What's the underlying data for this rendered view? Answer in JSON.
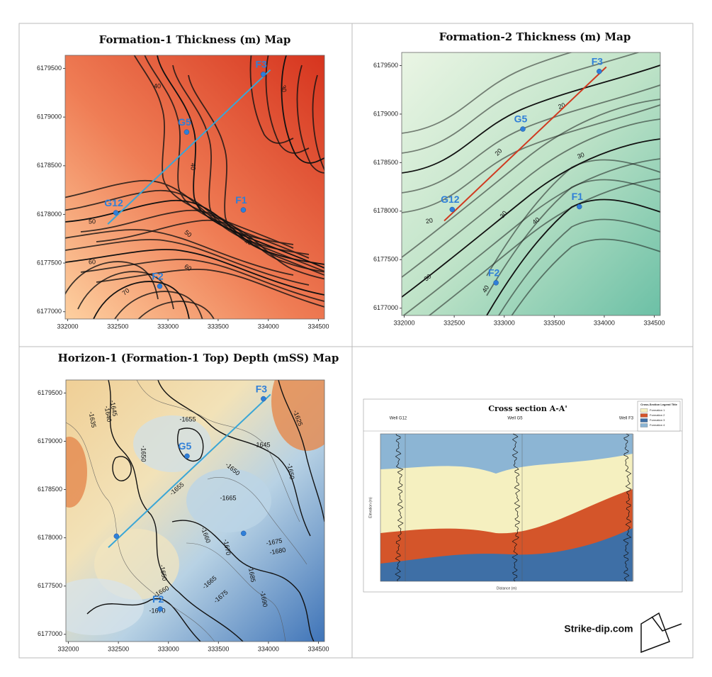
{
  "maps": [
    {
      "title": "Formation-1 Thickness (m) Map",
      "style": "f1",
      "xlim": [
        331975,
        334560
      ],
      "ylim": [
        6176925,
        6179635
      ],
      "xticks": [
        332000,
        332500,
        333000,
        333500,
        334000,
        334500
      ],
      "yticks": [
        6177000,
        6177500,
        6178000,
        6178500,
        6179000,
        6179500
      ],
      "section_color": "#3aa6d6",
      "wells": [
        {
          "name": "F3",
          "x": 333950,
          "y": 6179440
        },
        {
          "name": "G5",
          "x": 333186,
          "y": 6178846
        },
        {
          "name": "G12",
          "x": 332480,
          "y": 6178017
        },
        {
          "name": "F1",
          "x": 333751,
          "y": 6178046
        },
        {
          "name": "F2",
          "x": 332918,
          "y": 6177262
        }
      ],
      "contour_labels": [
        40,
        30,
        40,
        50,
        50,
        40,
        60,
        60,
        70
      ]
    },
    {
      "title": "Formation-2 Thickness (m) Map",
      "style": "f2",
      "xlim": [
        331975,
        334560
      ],
      "ylim": [
        6176925,
        6179635
      ],
      "xticks": [
        332000,
        332500,
        333000,
        333500,
        334000,
        334500
      ],
      "yticks": [
        6177000,
        6177500,
        6178000,
        6178500,
        6179000,
        6179500
      ],
      "section_color": "#d03a20",
      "wells": [
        {
          "name": "F3",
          "x": 333950,
          "y": 6179440
        },
        {
          "name": "G5",
          "x": 333186,
          "y": 6178846
        },
        {
          "name": "G12",
          "x": 332480,
          "y": 6178017
        },
        {
          "name": "F1",
          "x": 333751,
          "y": 6178046
        },
        {
          "name": "F2",
          "x": 332918,
          "y": 6177262
        }
      ],
      "contour_labels": [
        20,
        20,
        30,
        20,
        30,
        40,
        30,
        40
      ]
    },
    {
      "title": "Horizon-1 (Formation-1 Top) Depth (mSS) Map",
      "style": "h1",
      "xlim": [
        331975,
        334560
      ],
      "ylim": [
        6176925,
        6179635
      ],
      "xticks": [
        332000,
        332500,
        333000,
        333500,
        334000,
        334500
      ],
      "yticks": [
        6177000,
        6177500,
        6178000,
        6178500,
        6179000,
        6179500
      ],
      "section_color": "#3aa6d6",
      "wells": [
        {
          "name": "F3",
          "x": 333950,
          "y": 6179440
        },
        {
          "name": "G5",
          "x": 333186,
          "y": 6178846
        },
        {
          "name": null,
          "x": 332480,
          "y": 6178017
        },
        {
          "name": null,
          "x": 333751,
          "y": 6178046
        },
        {
          "name": "F2",
          "x": 332918,
          "y": 6177262
        }
      ],
      "contour_labels": [
        -1635,
        -1640,
        -1645,
        -1655,
        -1650,
        -1645,
        -1650,
        -1650,
        -1625,
        -1655,
        -1665,
        -1660,
        -1670,
        -1675,
        -1680,
        -1650,
        -1665,
        -1675,
        -1685,
        -1690,
        -1660,
        -1670
      ]
    }
  ],
  "cross_section": {
    "title": "Cross section A-A'",
    "wells": [
      "Well G12",
      "Well G5",
      "Well F3"
    ],
    "legend_title": "Cross-Section Legend Title",
    "legend": [
      {
        "name": "Formation 1",
        "color": "#f5f0c0"
      },
      {
        "name": "Formation 2",
        "color": "#d4552a"
      },
      {
        "name": "Formation 3",
        "color": "#3e6fa6"
      },
      {
        "name": "Formation 4",
        "color": "#8cb5d4"
      }
    ],
    "x_label": "Distance (m)",
    "y_label": "Elevation (m)"
  },
  "footer": "Strike-dip.com"
}
